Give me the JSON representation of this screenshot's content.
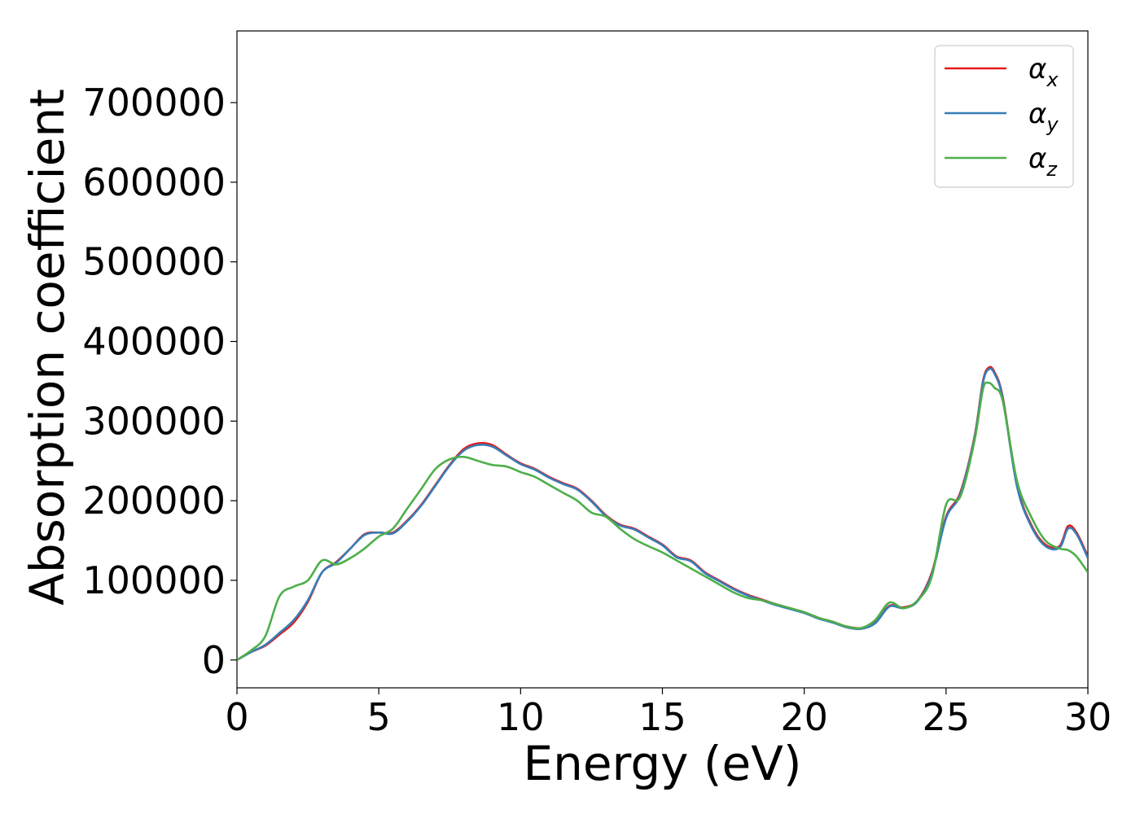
{
  "chart_data": {
    "type": "line",
    "title": "",
    "xlabel": "Energy (eV)",
    "ylabel": "Absorption coefficient",
    "xlim": [
      0,
      30
    ],
    "ylim": [
      -35000,
      790000
    ],
    "xticks": [
      0,
      5,
      10,
      15,
      20,
      25,
      30
    ],
    "xtick_labels": [
      "0",
      "5",
      "10",
      "15",
      "20",
      "25",
      "30"
    ],
    "yticks": [
      0,
      100000,
      200000,
      300000,
      400000,
      500000,
      600000,
      700000
    ],
    "ytick_labels": [
      "0",
      "100000",
      "200000",
      "300000",
      "400000",
      "500000",
      "600000",
      "700000"
    ],
    "grid": false,
    "legend_position": "top-right",
    "series": [
      {
        "name": "α",
        "subscript": "x",
        "color": "#e41a1c",
        "x": [
          0,
          0.5,
          1,
          1.5,
          2,
          2.5,
          3,
          3.5,
          4,
          4.5,
          5,
          5.5,
          6,
          6.5,
          7,
          7.5,
          8,
          8.5,
          9,
          9.5,
          10,
          10.5,
          11,
          11.5,
          12,
          12.5,
          13,
          13.5,
          14,
          14.5,
          15,
          15.5,
          16,
          16.5,
          17,
          17.5,
          18,
          18.5,
          19,
          19.5,
          20,
          20.5,
          21,
          21.5,
          22,
          22.5,
          23,
          23.5,
          24,
          24.5,
          25,
          25.5,
          26,
          26.3,
          26.5,
          26.7,
          27,
          27.5,
          28,
          28.5,
          29,
          29.3,
          29.6,
          30
        ],
        "values": [
          0,
          10000,
          18000,
          32000,
          47000,
          73000,
          110000,
          123000,
          140000,
          158000,
          160000,
          160000,
          175000,
          195000,
          220000,
          245000,
          265000,
          272000,
          270000,
          258000,
          247000,
          240000,
          230000,
          222000,
          215000,
          200000,
          182000,
          170000,
          165000,
          155000,
          145000,
          130000,
          125000,
          110000,
          100000,
          90000,
          82000,
          76000,
          70000,
          65000,
          60000,
          53000,
          48000,
          42000,
          40000,
          47000,
          68000,
          66000,
          75000,
          110000,
          180000,
          210000,
          280000,
          350000,
          367000,
          362000,
          330000,
          220000,
          170000,
          145000,
          143000,
          168000,
          160000,
          130000
        ]
      },
      {
        "name": "α",
        "subscript": "y",
        "color": "#377eb8",
        "x": [
          0,
          0.5,
          1,
          1.5,
          2,
          2.5,
          3,
          3.5,
          4,
          4.5,
          5,
          5.5,
          6,
          6.5,
          7,
          7.5,
          8,
          8.5,
          9,
          9.5,
          10,
          10.5,
          11,
          11.5,
          12,
          12.5,
          13,
          13.5,
          14,
          14.5,
          15,
          15.5,
          16,
          16.5,
          17,
          17.5,
          18,
          18.5,
          19,
          19.5,
          20,
          20.5,
          21,
          21.5,
          22,
          22.5,
          23,
          23.5,
          24,
          24.5,
          25,
          25.5,
          26,
          26.3,
          26.5,
          26.7,
          27,
          27.5,
          28,
          28.5,
          29,
          29.3,
          29.6,
          30
        ],
        "values": [
          0,
          10000,
          19000,
          34000,
          50000,
          75000,
          110000,
          122000,
          140000,
          157000,
          160000,
          159000,
          174000,
          194000,
          219000,
          244000,
          263000,
          270000,
          268000,
          257000,
          246000,
          239000,
          229000,
          221000,
          214000,
          199000,
          181000,
          169000,
          164000,
          154000,
          144000,
          129000,
          124000,
          109000,
          99000,
          89000,
          81000,
          75000,
          69000,
          64000,
          59000,
          52000,
          47000,
          41000,
          39000,
          46000,
          67000,
          65000,
          74000,
          108000,
          178000,
          208000,
          278000,
          348000,
          365000,
          360000,
          328000,
          218000,
          168000,
          143000,
          141000,
          165000,
          158000,
          128000
        ]
      },
      {
        "name": "α",
        "subscript": "z",
        "color": "#4daf4a",
        "x": [
          0,
          0.5,
          1,
          1.5,
          2,
          2.5,
          3,
          3.5,
          4,
          4.5,
          5,
          5.5,
          6,
          6.5,
          7,
          7.5,
          8,
          8.5,
          9,
          9.5,
          10,
          10.5,
          11,
          11.5,
          12,
          12.5,
          13,
          13.5,
          14,
          14.5,
          15,
          15.5,
          16,
          16.5,
          17,
          17.5,
          18,
          18.5,
          19,
          19.5,
          20,
          20.5,
          21,
          21.5,
          22,
          22.5,
          23,
          23.5,
          24,
          24.5,
          25,
          25.5,
          26,
          26.3,
          26.5,
          26.7,
          27,
          27.5,
          28,
          28.5,
          29,
          29.3,
          29.6,
          30
        ],
        "values": [
          0,
          12000,
          30000,
          80000,
          92000,
          100000,
          125000,
          120000,
          128000,
          140000,
          155000,
          165000,
          190000,
          215000,
          240000,
          252000,
          255000,
          250000,
          245000,
          243000,
          236000,
          230000,
          220000,
          210000,
          200000,
          185000,
          180000,
          165000,
          152000,
          143000,
          135000,
          125000,
          115000,
          105000,
          95000,
          85000,
          78000,
          75000,
          70000,
          65000,
          60000,
          53000,
          48000,
          42000,
          40000,
          50000,
          72000,
          65000,
          75000,
          105000,
          195000,
          205000,
          275000,
          340000,
          348000,
          342000,
          325000,
          225000,
          180000,
          150000,
          140000,
          138000,
          130000,
          110000
        ]
      }
    ]
  }
}
